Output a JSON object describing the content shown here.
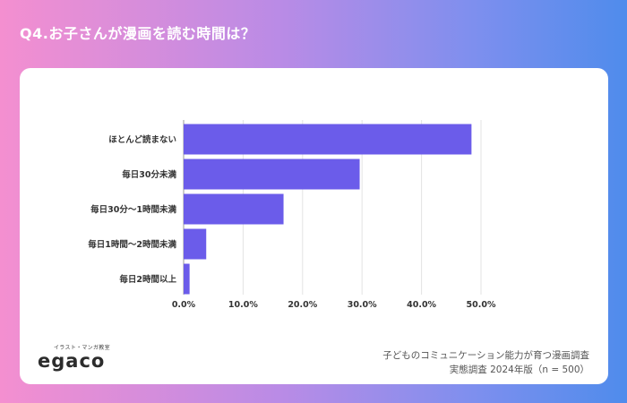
{
  "title": "Q4.お子さんが漫画を読む時間は？",
  "chart_data": {
    "type": "bar",
    "orientation": "horizontal",
    "categories": [
      "ほとんど読まない",
      "毎日30分未満",
      "毎日30分〜1時間未満",
      "毎日1時間〜2時間未満",
      "毎日2時間以上"
    ],
    "values": [
      48.4,
      29.6,
      16.8,
      3.8,
      1.0
    ],
    "x_ticks": [
      "0.0%",
      "10.0%",
      "20.0%",
      "30.0%",
      "40.0%",
      "50.0%"
    ],
    "xlim": [
      0,
      50
    ],
    "bar_color": "#6b5cea",
    "grid": true,
    "xlabel": "",
    "ylabel": ""
  },
  "logo": {
    "tagline": "イラスト・マンガ教室",
    "wordmark": "egaco"
  },
  "source": {
    "line1": "子どものコミュニケーション能力が育つ漫画調査",
    "line2": "実態調査 2024年版（n = 500）"
  }
}
